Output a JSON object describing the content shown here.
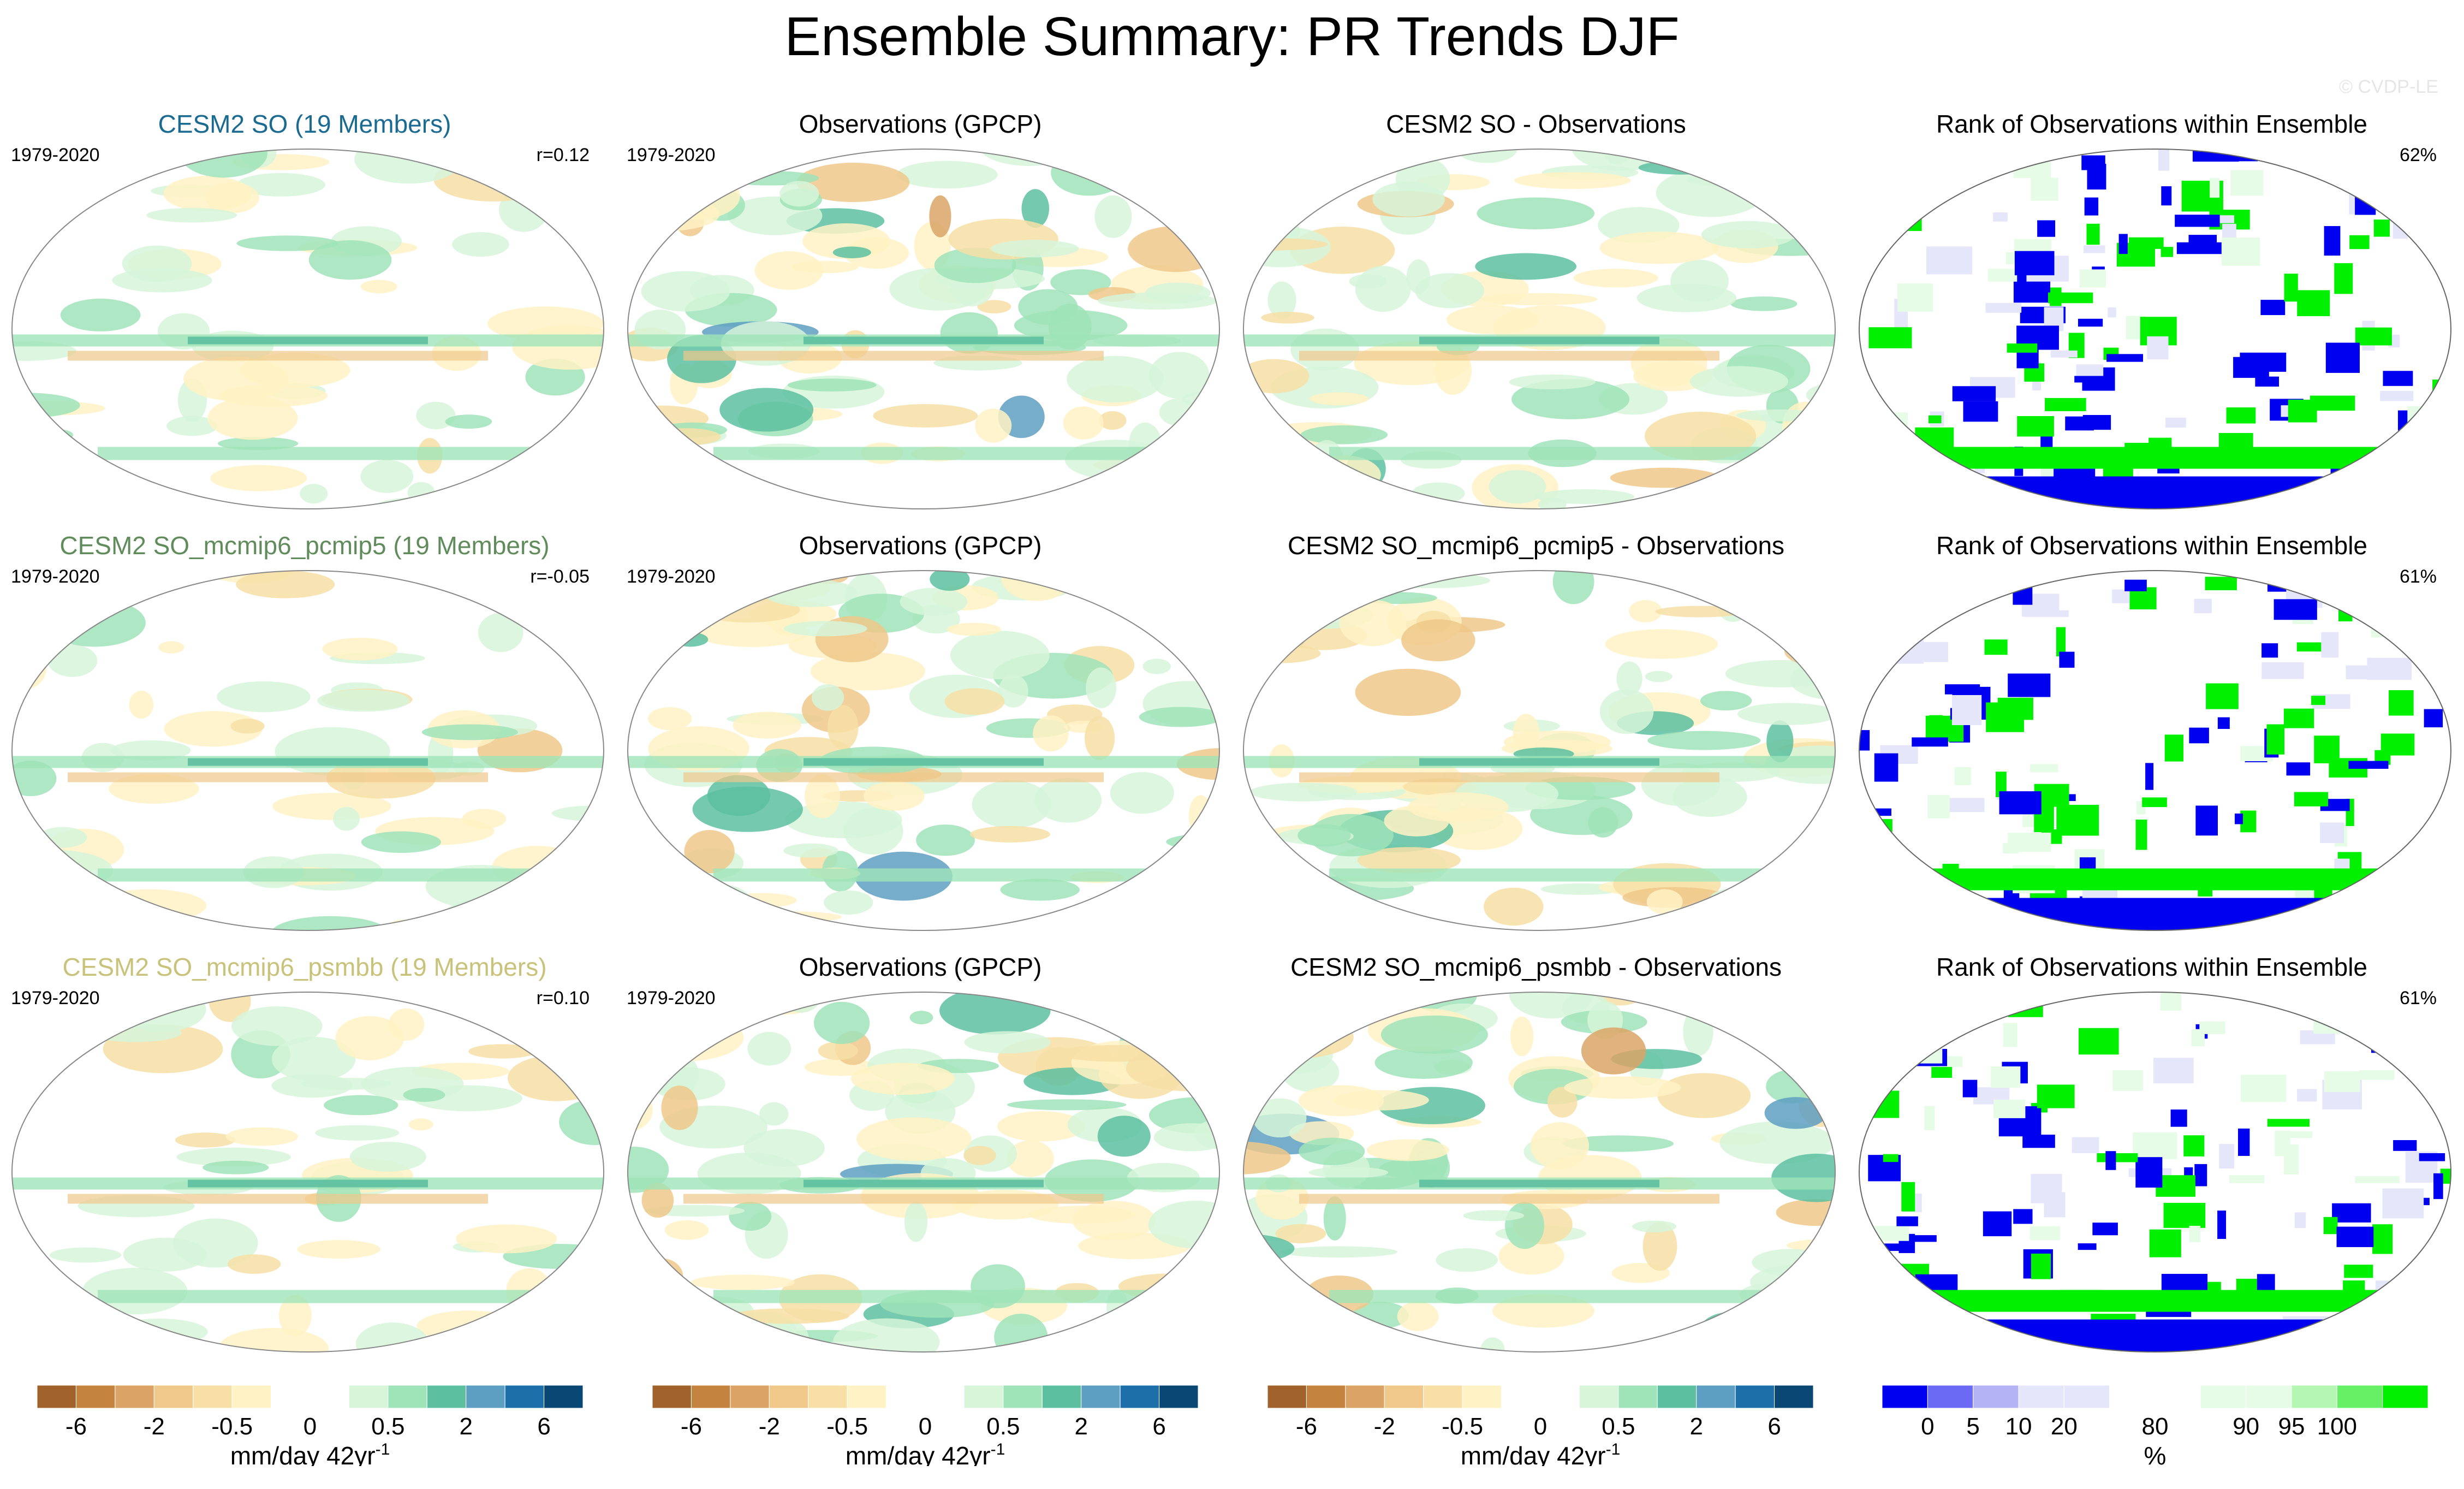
{
  "title": "Ensemble Summary: PR Trends DJF",
  "credit": "© CVDP-LE",
  "rows": [
    {
      "model_title": "CESM2 SO (19 Members)",
      "model_color": "#1a6a92",
      "period": "1979-2020",
      "r": "r=0.12",
      "obs_title": "Observations (GPCP)",
      "obs_period": "1979-2020",
      "diff_title": "CESM2 SO - Observations",
      "rank_title": "Rank of Observations within Ensemble",
      "rank_pct": "62%"
    },
    {
      "model_title": "CESM2 SO_mcmip6_pcmip5 (19 Members)",
      "model_color": "#5f8c5a",
      "period": "1979-2020",
      "r": "r=-0.05",
      "obs_title": "Observations (GPCP)",
      "obs_period": "1979-2020",
      "diff_title": "CESM2 SO_mcmip6_pcmip5 - Observations",
      "rank_title": "Rank of Observations within Ensemble",
      "rank_pct": "61%"
    },
    {
      "model_title": "CESM2 SO_mcmip6_psmbb (19 Members)",
      "model_color": "#c9c27a",
      "period": "1979-2020",
      "r": "r=0.10",
      "obs_title": "Observations (GPCP)",
      "obs_period": "1979-2020",
      "diff_title": "CESM2 SO_mcmip6_psmbb - Observations",
      "rank_title": "Rank of Observations within Ensemble",
      "rank_pct": "61%"
    }
  ],
  "colorbars": {
    "trend": {
      "colors": [
        "#a0622a",
        "#c4843f",
        "#dba466",
        "#efc88a",
        "#f7dfa6",
        "#fff2c4",
        "#ffffff",
        "#ffffff",
        "#d6f5d9",
        "#9fe3b8",
        "#5cbfa0",
        "#5d9fc2",
        "#1c6fa8",
        "#0b4775"
      ],
      "ticks": [
        "-6",
        "-2",
        "-0.5",
        "0",
        "0.5",
        "2",
        "6"
      ],
      "unit": "mm/day 42yr",
      "unit_sup": "-1"
    },
    "rank": {
      "colors": [
        "#0000f0",
        "#6a6af5",
        "#b3b3f5",
        "#e6e6fb",
        "#e6e6fb",
        "#ffffff",
        "#ffffff",
        "#e6fce6",
        "#e6fce6",
        "#b3f7b3",
        "#66f066",
        "#00f000"
      ],
      "ticks": [
        "0",
        "5",
        "10",
        "20",
        "80",
        "90",
        "95",
        "100"
      ],
      "unit": "%"
    }
  },
  "chart_data": [
    {
      "type": "heatmap",
      "variable": "PR trend",
      "season": "DJF",
      "units": "mm/day 42yr-1",
      "levels": [
        -6,
        -4,
        -2,
        -1,
        -0.5,
        -0.2,
        0,
        0.2,
        0.5,
        1,
        2,
        4,
        6
      ],
      "panels": 9
    },
    {
      "type": "heatmap",
      "variable": "Rank of observations within ensemble",
      "units": "%",
      "levels": [
        0,
        5,
        10,
        20,
        80,
        90,
        95,
        100
      ],
      "panels": 3,
      "area_fraction": [
        "62%",
        "61%",
        "61%"
      ]
    }
  ]
}
